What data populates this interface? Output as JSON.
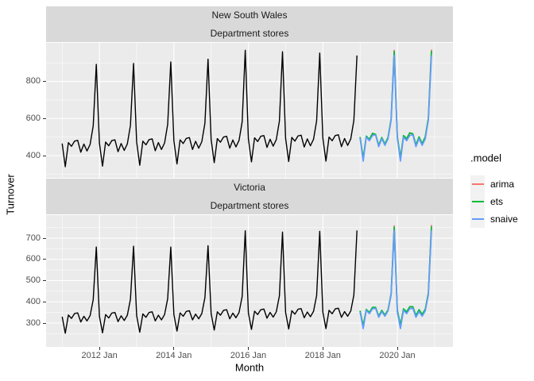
{
  "chart_data": {
    "type": "line",
    "title": "",
    "xlabel": "Month",
    "ylabel": "Turnover",
    "x_unit": "month",
    "x_start": "2011 Jan",
    "grid": true,
    "x_ticks": [
      {
        "label": "2012 Jan",
        "t": 12
      },
      {
        "label": "2014 Jan",
        "t": 36
      },
      {
        "label": "2016 Jan",
        "t": 60
      },
      {
        "label": "2018 Jan",
        "t": 84
      },
      {
        "label": "2020 Jan",
        "t": 108
      }
    ],
    "x_minor_t": [
      0,
      24,
      48,
      72,
      96,
      120
    ],
    "legend": {
      "title": ".model",
      "position": "right",
      "items": [
        {
          "label": "arima",
          "color": "#F8766D"
        },
        {
          "label": "ets",
          "color": "#00BA38"
        },
        {
          "label": "snaive",
          "color": "#619CFF"
        }
      ]
    },
    "facets": [
      {
        "strip": [
          "New South Wales",
          "Department stores"
        ],
        "y_ticks": [
          400,
          600,
          800
        ],
        "y_minor": [
          300,
          500,
          700,
          900
        ],
        "ylim": [
          290,
          1010
        ],
        "series": [
          {
            "name": "data",
            "color": "#000000",
            "width": 1.4,
            "start": 0,
            "values": [
              465,
              340,
              470,
              450,
              478,
              482,
              418,
              462,
              425,
              460,
              560,
              892,
              468,
              343,
              473,
              453,
              481,
              485,
              421,
              465,
              428,
              463,
              563,
              897,
              473,
              348,
              478,
              458,
              486,
              490,
              426,
              470,
              433,
              468,
              568,
              905,
              480,
              355,
              485,
              465,
              493,
              497,
              433,
              477,
              440,
              475,
              575,
              920,
              487,
              362,
              492,
              472,
              500,
              504,
              440,
              484,
              447,
              482,
              582,
              968,
              491,
              366,
              496,
              476,
              504,
              508,
              444,
              488,
              451,
              486,
              586,
              960,
              493,
              368,
              498,
              478,
              506,
              510,
              446,
              490,
              453,
              488,
              588,
              953,
              495,
              370,
              500,
              480,
              508,
              512,
              448,
              492,
              455,
              490,
              590,
              940
            ]
          },
          {
            "name": "arima",
            "color": "#F8766D",
            "width": 1.7,
            "start": 96,
            "values": [
              498,
              380,
              502,
              485,
              516,
              512,
              452,
              495,
              459,
              495,
              595,
              968,
              502,
              384,
              506,
              489,
              520,
              516,
              456,
              499,
              463,
              499,
              599,
              972
            ]
          },
          {
            "name": "ets",
            "color": "#00BA38",
            "width": 1.7,
            "start": 96,
            "values": [
              500,
              385,
              505,
              488,
              520,
              515,
              455,
              498,
              462,
              498,
              598,
              962,
              503,
              388,
              508,
              491,
              523,
              518,
              458,
              501,
              465,
              501,
              601,
              965
            ]
          },
          {
            "name": "snaive",
            "color": "#619CFF",
            "width": 1.7,
            "start": 96,
            "values": [
              495,
              370,
              500,
              480,
              508,
              512,
              448,
              492,
              455,
              490,
              590,
              940,
              495,
              370,
              500,
              480,
              508,
              512,
              448,
              492,
              455,
              490,
              590,
              940
            ]
          }
        ]
      },
      {
        "strip": [
          "Victoria",
          "Department stores"
        ],
        "y_ticks": [
          300,
          400,
          500,
          600,
          700
        ],
        "y_minor": [
          250,
          350,
          450,
          550,
          650,
          750
        ],
        "ylim": [
          190,
          810
        ],
        "series": [
          {
            "name": "data",
            "color": "#000000",
            "width": 1.4,
            "start": 0,
            "values": [
              330,
              252,
              338,
              322,
              345,
              348,
              305,
              332,
              310,
              335,
              410,
              658,
              332,
              254,
              340,
              324,
              347,
              350,
              307,
              334,
              312,
              337,
              412,
              662,
              335,
              257,
              343,
              327,
              350,
              353,
              310,
              337,
              315,
              340,
              415,
              658,
              340,
              262,
              348,
              332,
              355,
              358,
              315,
              342,
              320,
              345,
              420,
              664,
              345,
              267,
              353,
              337,
              360,
              363,
              320,
              347,
              325,
              350,
              425,
              735,
              348,
              270,
              356,
              340,
              363,
              366,
              323,
              350,
              328,
              353,
              428,
              728,
              350,
              272,
              358,
              342,
              365,
              368,
              325,
              352,
              330,
              355,
              430,
              732,
              352,
              274,
              360,
              344,
              367,
              370,
              327,
              354,
              332,
              357,
              432,
              736
            ]
          },
          {
            "name": "arima",
            "color": "#F8766D",
            "width": 1.7,
            "start": 96,
            "values": [
              355,
              283,
              362,
              347,
              371,
              372,
              330,
              357,
              335,
              359,
              435,
              758,
              359,
              287,
              366,
              351,
              375,
              376,
              334,
              361,
              339,
              363,
              439,
              762
            ]
          },
          {
            "name": "ets",
            "color": "#00BA38",
            "width": 1.7,
            "start": 96,
            "values": [
              358,
              288,
              364,
              350,
              374,
              374,
              333,
              360,
              338,
              362,
              438,
              752,
              361,
              291,
              367,
              353,
              377,
              377,
              336,
              363,
              341,
              365,
              441,
              755
            ]
          },
          {
            "name": "snaive",
            "color": "#619CFF",
            "width": 1.7,
            "start": 96,
            "values": [
              352,
              274,
              360,
              344,
              367,
              370,
              327,
              354,
              332,
              357,
              432,
              736,
              352,
              274,
              360,
              344,
              367,
              370,
              327,
              354,
              332,
              357,
              432,
              736
            ]
          }
        ]
      }
    ],
    "colors": {
      "panel_bg": "#EBEBEB",
      "strip_bg": "#D9D9D9",
      "gridline": "#FFFFFF",
      "axis_text": "#4D4D4D",
      "strip_text": "#1A1A1A",
      "tick_mark": "#333333",
      "historical_line": "#000000"
    }
  }
}
